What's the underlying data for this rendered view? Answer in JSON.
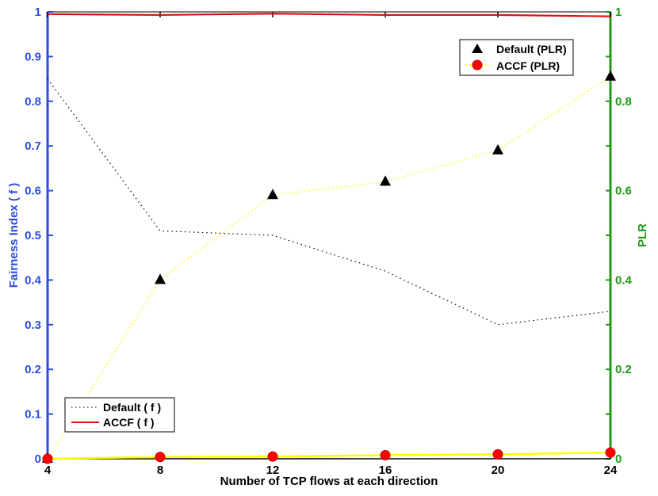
{
  "chart_data": {
    "type": "line",
    "xlabel": "Number of TCP flows at each direction",
    "ylabel_left": "Fairness Index ( f )",
    "ylabel_right": "PLR",
    "x": [
      4,
      8,
      12,
      16,
      20,
      24
    ],
    "x_ticks": [
      "4",
      "8",
      "12",
      "16",
      "20",
      "24"
    ],
    "ylim_left": [
      0,
      1
    ],
    "ylim_right": [
      0,
      1
    ],
    "y_ticks_left": [
      "0",
      "0.1",
      "0.2",
      "0.3",
      "0.4",
      "0.5",
      "0.6",
      "0.7",
      "0.8",
      "0.9",
      "1"
    ],
    "y_ticks_right": [
      "0",
      "0.2",
      "0.4",
      "0.6",
      "0.8",
      "1"
    ],
    "grid": false,
    "series": [
      {
        "name": "Default ( f )",
        "axis": "left",
        "style": "dotted",
        "color": "#000000",
        "values": [
          0.85,
          0.51,
          0.5,
          0.42,
          0.3,
          0.33
        ]
      },
      {
        "name": "ACCF ( f )",
        "axis": "left",
        "style": "solid",
        "color": "#e01010",
        "values": [
          0.995,
          0.993,
          0.996,
          0.993,
          0.993,
          0.99
        ]
      },
      {
        "name": "Default (PLR)",
        "axis": "right",
        "style": "dotted",
        "marker": "triangle",
        "color": "#ffff00",
        "values": [
          0.0,
          0.4,
          0.59,
          0.62,
          0.69,
          0.855
        ]
      },
      {
        "name": "ACCF (PLR)",
        "axis": "right",
        "style": "solid",
        "marker": "circle",
        "color": "#ffff00",
        "values": [
          0.0,
          0.004,
          0.005,
          0.008,
          0.01,
          0.014
        ]
      }
    ],
    "legends": [
      {
        "position": "top-right",
        "entries": [
          "Default (PLR)",
          "ACCF (PLR)"
        ]
      },
      {
        "position": "bottom-left",
        "entries": [
          "Default ( f )",
          "ACCF ( f )"
        ]
      }
    ],
    "colors": {
      "left_axis": "#2b4de0",
      "right_axis": "#1f9a14"
    }
  }
}
